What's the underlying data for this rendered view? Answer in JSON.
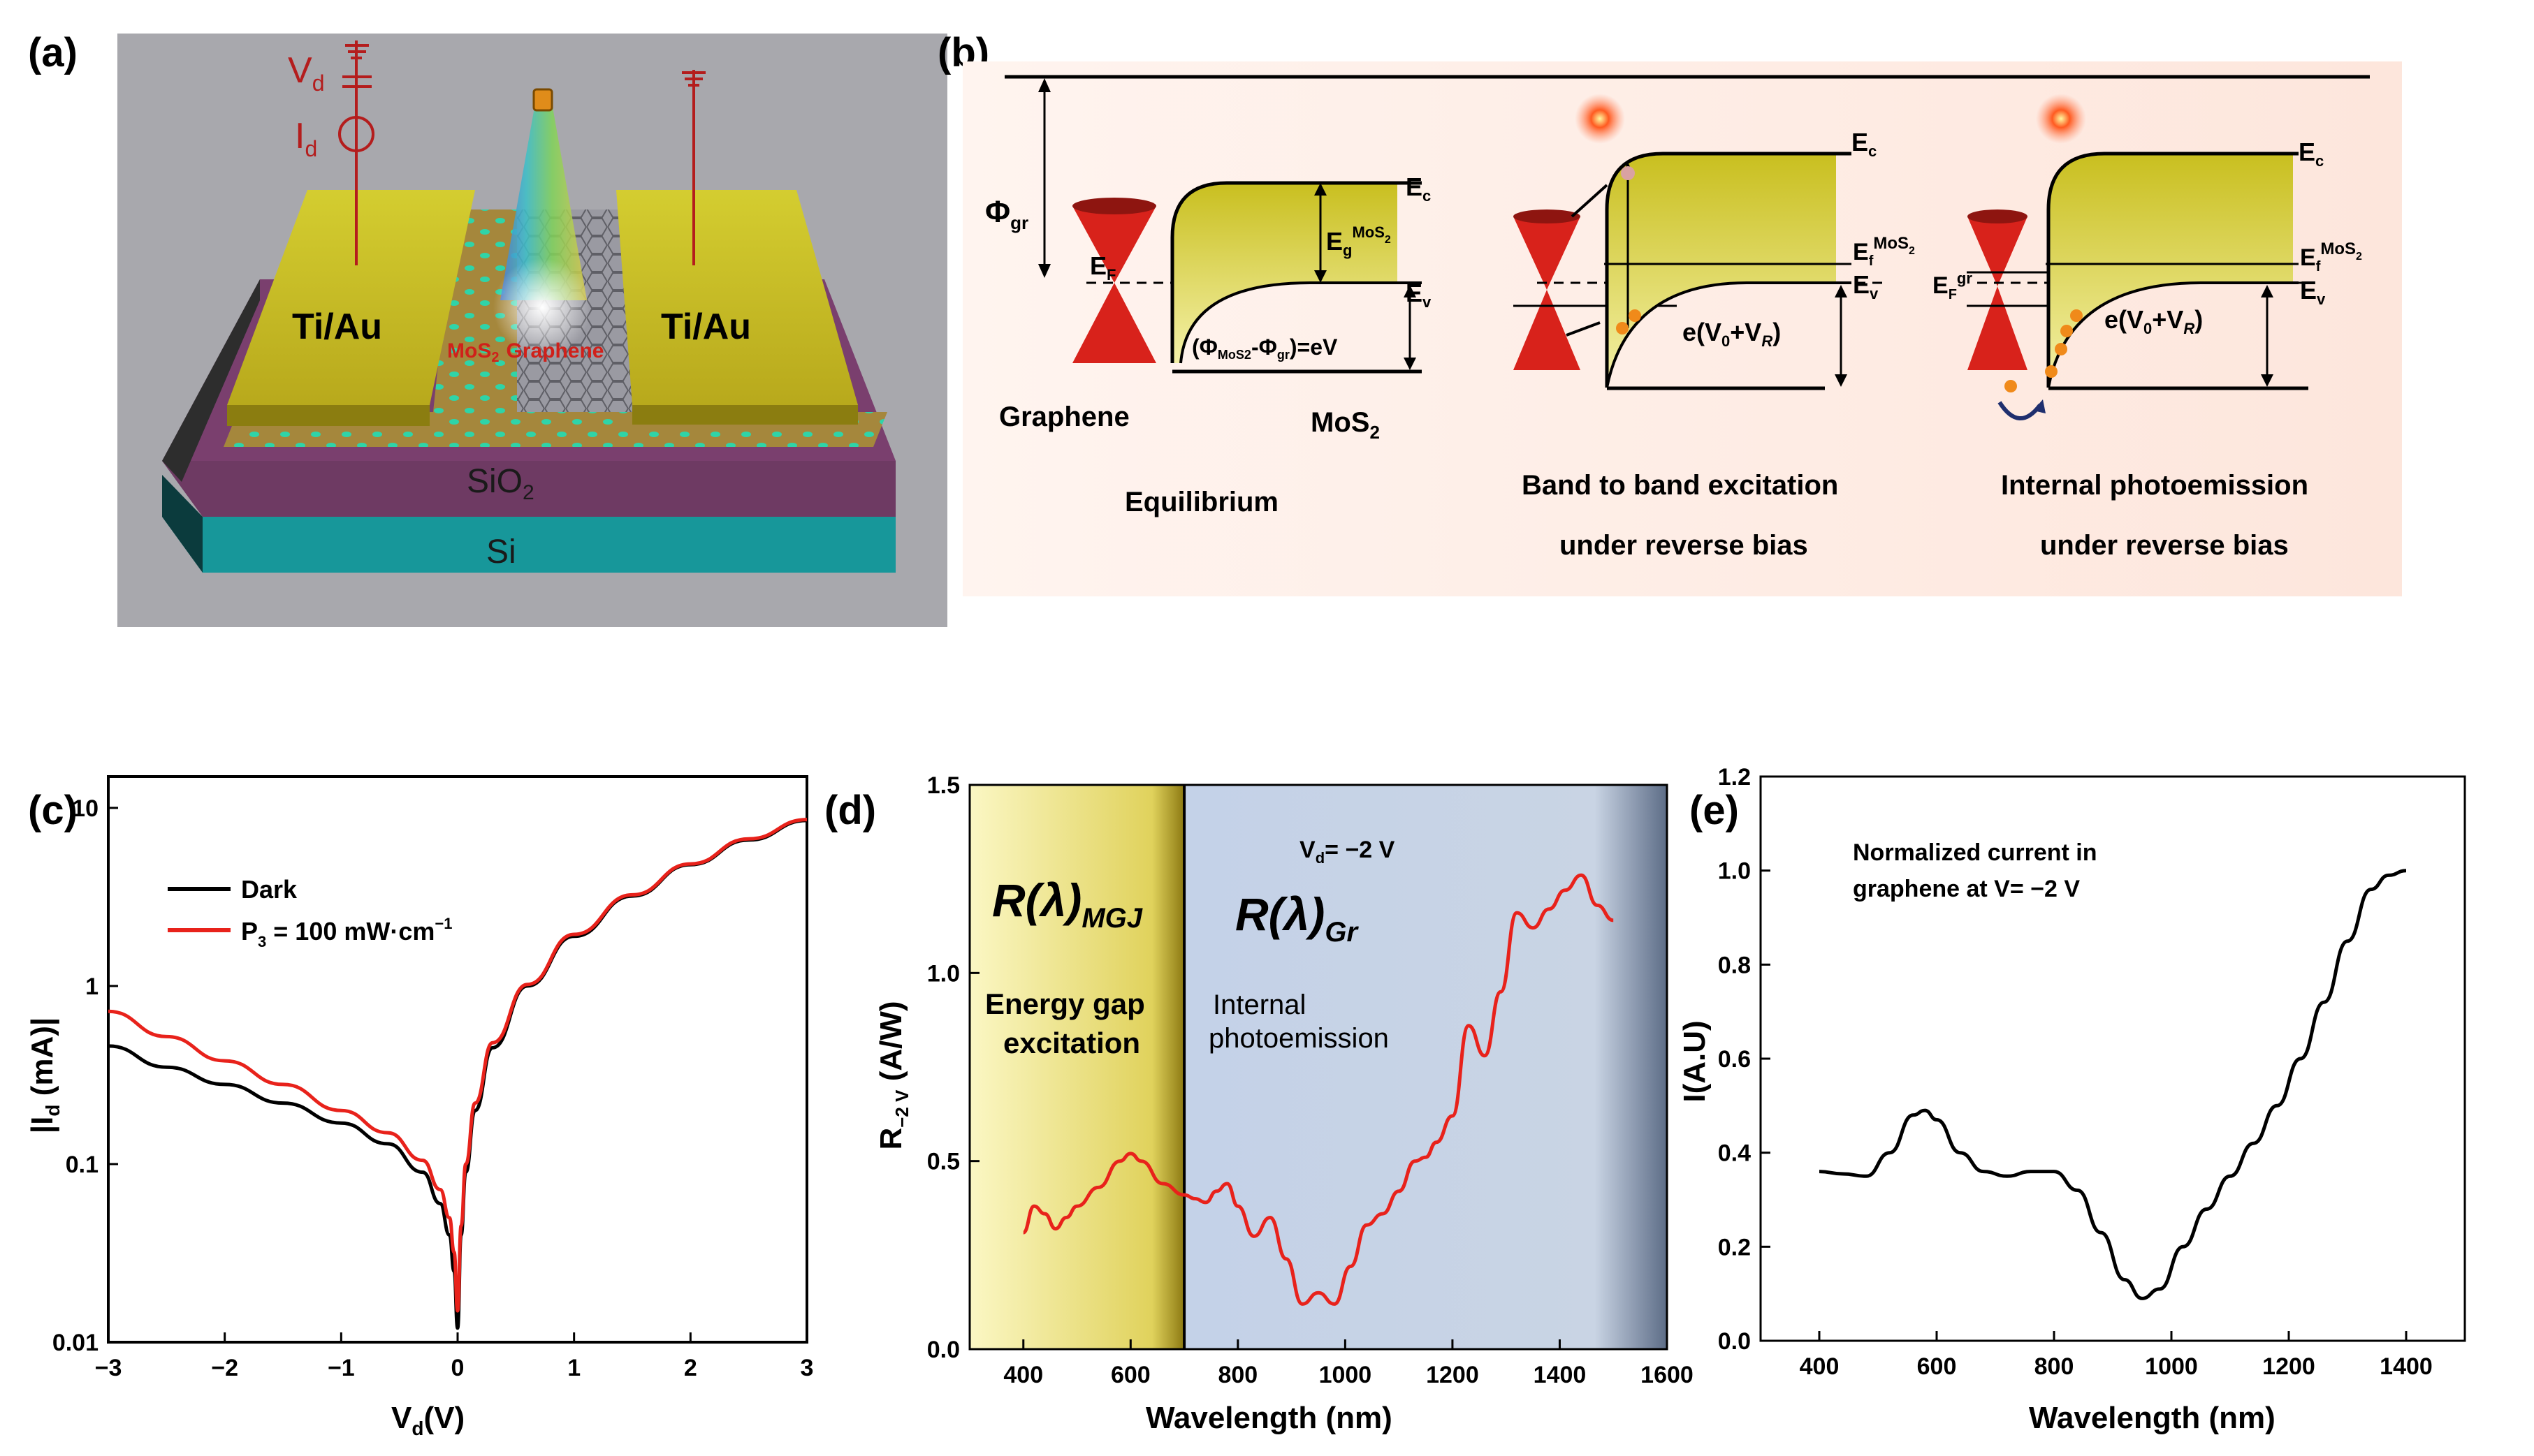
{
  "panels": {
    "a": "(a)",
    "b": "(b)",
    "c": "(c)",
    "d": "(d)",
    "e": "(e)"
  },
  "device": {
    "vd": "V",
    "vd_sub": "d",
    "id": "I",
    "id_sub": "d",
    "left_contact": "Ti/Au",
    "right_contact": "Ti/Au",
    "mos2": "MoS",
    "mos2_sub": "2",
    "graphene": "Graphene",
    "sio2": "SiO",
    "sio2_sub": "2",
    "si": "Si"
  },
  "band": {
    "phi_gr": "Φ",
    "phi_gr_sub": "gr",
    "ef": "E",
    "ef_sub": "F",
    "ec": "E",
    "ec_sub": "c",
    "ev": "E",
    "ev_sub": "v",
    "eg": "E",
    "eg_sub": "g",
    "eg_sup": "MoS",
    "efmos": "E",
    "efmos_sub": "f",
    "efmos_sup": "MoS",
    "efgr": "E",
    "efgr_sub": "F",
    "efgr_sup": "gr",
    "phi_eq": "(Φ",
    "phi_eq_sub1": "MoS",
    "phi_eq_mid": "-Φ",
    "phi_eq_sub2": "gr",
    "phi_eq_end": ")=eV",
    "bias_label": "e(V",
    "bias_sub0": "0",
    "bias_plus": "+V",
    "bias_subR": "R",
    "bias_end": ")",
    "graphene": "Graphene",
    "mos2": "MoS",
    "mos2_sub": "2",
    "cap_equilibrium": "Equilibrium",
    "cap_band1": "Band to band excitation",
    "cap_band2": "under reverse bias",
    "cap_ipe1": "Internal photoemission",
    "cap_ipe2": "under reverse bias"
  },
  "colors": {
    "dark": "#000000",
    "light": "#e8221b",
    "curve": "#e8221b",
    "band": "#cfcc2a",
    "cone": "#d9221b"
  },
  "chart_data": [
    {
      "id": "c",
      "type": "line",
      "xlabel": "V",
      "xlabel_sub": "d",
      "xlabel_end": "(V)",
      "ylabel": "|I",
      "ylabel_sub": "d",
      "ylabel_end": " (mA)|",
      "yscale": "log",
      "xlim": [
        -3,
        3
      ],
      "ylim": [
        0.01,
        15
      ],
      "xticks": [
        "−3",
        "−2",
        "−1",
        "0",
        "1",
        "2",
        "3"
      ],
      "xtick_values": [
        -3,
        -2,
        -1,
        0,
        1,
        2,
        3
      ],
      "yticks": [
        "0.01",
        "0.1",
        "1",
        "10"
      ],
      "ytick_values": [
        0.01,
        0.1,
        1,
        10
      ],
      "legend": [
        {
          "name": "Dark",
          "color": "#000000"
        },
        {
          "name": "P",
          "sub": "3",
          "rest": " = 100 mW·cm",
          "sup": "−1",
          "color": "#e8221b"
        }
      ],
      "series": [
        {
          "name": "Dark",
          "color": "#000000",
          "x": [
            -3,
            -2.5,
            -2,
            -1.5,
            -1,
            -0.6,
            -0.3,
            -0.15,
            -0.07,
            -0.03,
            0,
            0.03,
            0.07,
            0.15,
            0.3,
            0.6,
            1,
            1.5,
            2,
            2.5,
            3
          ],
          "y": [
            0.46,
            0.35,
            0.28,
            0.22,
            0.17,
            0.13,
            0.09,
            0.06,
            0.04,
            0.025,
            0.012,
            0.04,
            0.09,
            0.2,
            0.45,
            1.0,
            1.9,
            3.2,
            4.8,
            6.6,
            8.5
          ]
        },
        {
          "name": "P3 = 100 mW·cm−1",
          "color": "#e8221b",
          "x": [
            -3,
            -2.5,
            -2,
            -1.5,
            -1,
            -0.6,
            -0.3,
            -0.15,
            -0.07,
            -0.03,
            0,
            0.03,
            0.07,
            0.15,
            0.3,
            0.6,
            1,
            1.5,
            2,
            2.5,
            3
          ],
          "y": [
            0.72,
            0.52,
            0.38,
            0.28,
            0.2,
            0.15,
            0.105,
            0.072,
            0.05,
            0.032,
            0.015,
            0.045,
            0.1,
            0.22,
            0.48,
            1.02,
            1.95,
            3.25,
            4.85,
            6.7,
            8.6
          ]
        }
      ]
    },
    {
      "id": "d",
      "type": "line",
      "xlabel": "Wavelength (nm)",
      "ylabel": "R",
      "ylabel_sub": "−2 V",
      "ylabel_end": " (A/W)",
      "xlim": [
        300,
        1600
      ],
      "ylim": [
        0,
        1.5
      ],
      "xticks": [
        "400",
        "600",
        "800",
        "1000",
        "1200",
        "1400",
        "1600"
      ],
      "xtick_values": [
        400,
        600,
        800,
        1000,
        1200,
        1400,
        1600
      ],
      "yticks": [
        "0.0",
        "0.5",
        "1.0",
        "1.5"
      ],
      "ytick_values": [
        0,
        0.5,
        1.0,
        1.5
      ],
      "region_split": 700,
      "annotations": {
        "vd": "V",
        "vd_sub": "d",
        "vd_end": "= −2 V",
        "r_mgj": "R(λ)",
        "r_mgj_sub": "MGJ",
        "r_gr": "R(λ)",
        "r_gr_sub": "Gr",
        "left1": "Energy gap",
        "left2": "excitation",
        "right1": "Internal",
        "right2": "photoemission"
      },
      "series": [
        {
          "name": "R",
          "color": "#e8221b",
          "x": [
            400,
            420,
            440,
            460,
            480,
            500,
            540,
            580,
            600,
            620,
            660,
            700,
            720,
            740,
            760,
            780,
            800,
            830,
            860,
            890,
            920,
            950,
            980,
            1010,
            1040,
            1070,
            1100,
            1130,
            1150,
            1170,
            1200,
            1230,
            1260,
            1290,
            1320,
            1350,
            1380,
            1410,
            1440,
            1470,
            1500
          ],
          "y": [
            0.31,
            0.38,
            0.36,
            0.32,
            0.35,
            0.38,
            0.43,
            0.5,
            0.52,
            0.5,
            0.44,
            0.41,
            0.4,
            0.39,
            0.42,
            0.44,
            0.38,
            0.3,
            0.35,
            0.24,
            0.12,
            0.15,
            0.12,
            0.22,
            0.33,
            0.36,
            0.42,
            0.5,
            0.51,
            0.55,
            0.62,
            0.86,
            0.78,
            0.95,
            1.16,
            1.12,
            1.17,
            1.22,
            1.26,
            1.18,
            1.14
          ]
        }
      ]
    },
    {
      "id": "e",
      "type": "line",
      "xlabel": "Wavelength (nm)",
      "ylabel": "I(A.U)",
      "xlim": [
        300,
        1500
      ],
      "ylim": [
        0,
        1.2
      ],
      "xticks": [
        "400",
        "600",
        "800",
        "1000",
        "1200",
        "1400"
      ],
      "xtick_values": [
        400,
        600,
        800,
        1000,
        1200,
        1400
      ],
      "yticks": [
        "0.0",
        "0.2",
        "0.4",
        "0.6",
        "0.8",
        "1.0",
        "1.2"
      ],
      "ytick_values": [
        0,
        0.2,
        0.4,
        0.6,
        0.8,
        1.0,
        1.2
      ],
      "annotation1": "Normalized current in",
      "annotation2": "graphene at V= −2 V",
      "series": [
        {
          "name": "I",
          "color": "#000000",
          "x": [
            400,
            440,
            480,
            520,
            560,
            580,
            600,
            640,
            680,
            720,
            760,
            800,
            840,
            880,
            920,
            950,
            980,
            1020,
            1060,
            1100,
            1140,
            1180,
            1220,
            1260,
            1300,
            1340,
            1370,
            1400
          ],
          "y": [
            0.36,
            0.355,
            0.35,
            0.4,
            0.48,
            0.49,
            0.47,
            0.4,
            0.36,
            0.35,
            0.36,
            0.36,
            0.32,
            0.23,
            0.13,
            0.09,
            0.11,
            0.2,
            0.28,
            0.35,
            0.42,
            0.5,
            0.6,
            0.72,
            0.85,
            0.96,
            0.99,
            1.0
          ]
        }
      ]
    }
  ]
}
